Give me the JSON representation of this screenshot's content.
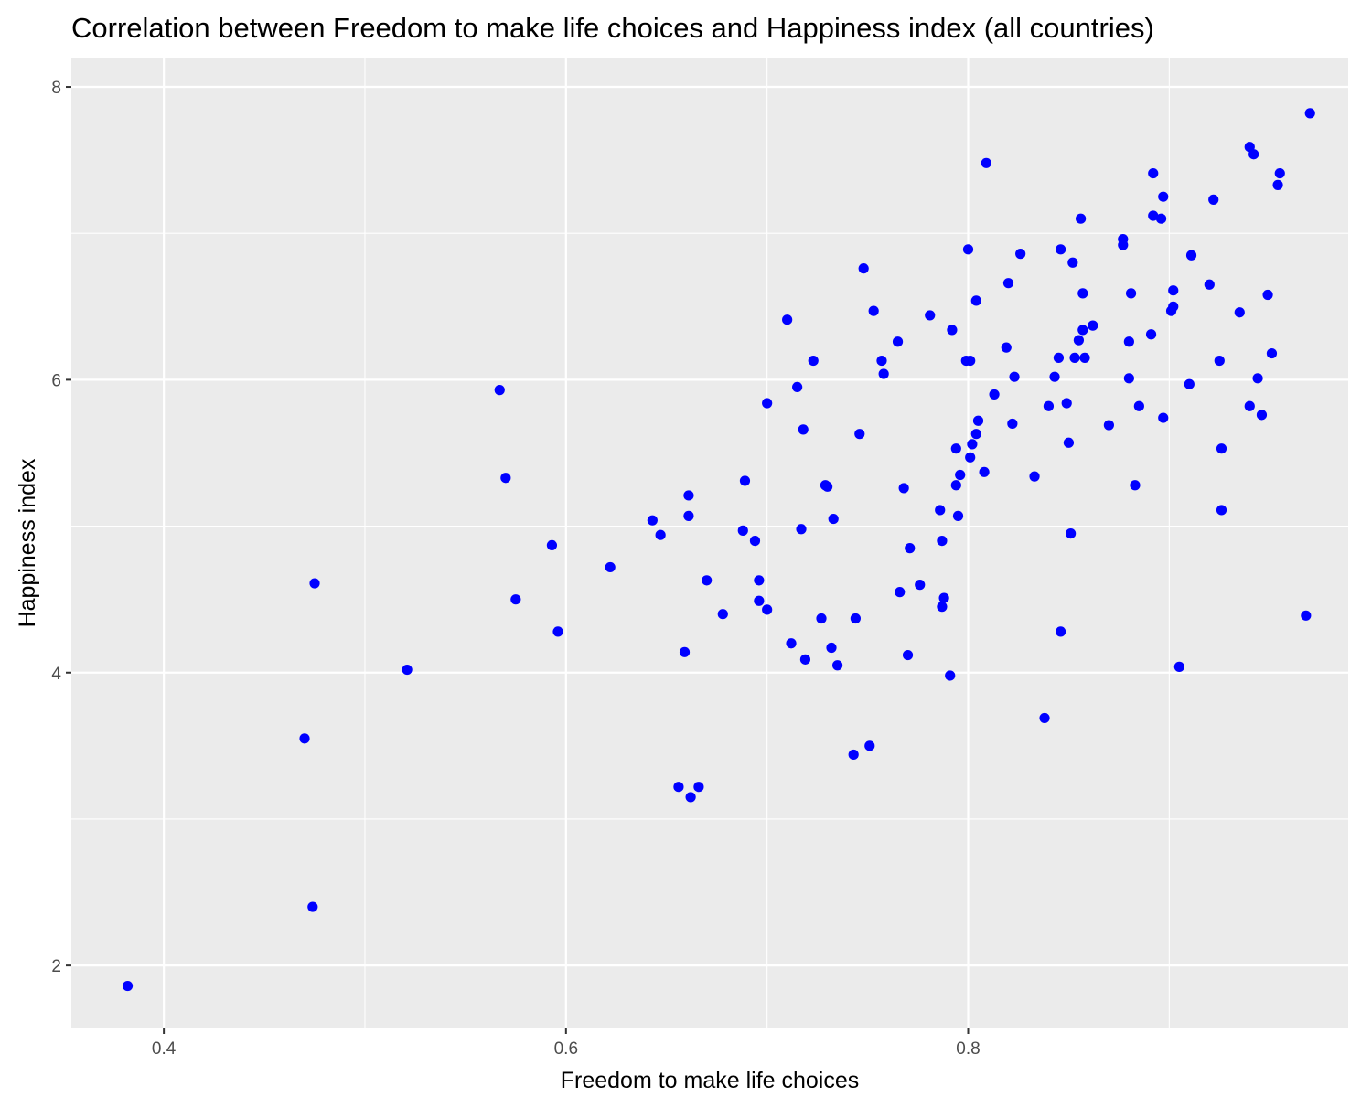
{
  "chart_data": {
    "type": "scatter",
    "title": "Correlation between Freedom to make life choices and Happiness index (all countries)",
    "xlabel": "Freedom to make life choices",
    "ylabel": "Happiness index",
    "xlim": [
      0.354,
      0.989
    ],
    "ylim": [
      1.57,
      8.2
    ],
    "xticks": [
      0.4,
      0.6,
      0.8
    ],
    "xtick_labels": [
      "0.4",
      "0.6",
      "0.8"
    ],
    "yticks": [
      2,
      4,
      6,
      8
    ],
    "ytick_labels": [
      "2",
      "4",
      "6",
      "8"
    ],
    "grid": true,
    "legend": "none",
    "point_color": "#0000ff",
    "panel_color": "#ebebeb",
    "points": [
      [
        0.382,
        1.86
      ],
      [
        0.474,
        2.4
      ],
      [
        0.47,
        3.55
      ],
      [
        0.475,
        4.61
      ],
      [
        0.521,
        4.02
      ],
      [
        0.567,
        5.93
      ],
      [
        0.57,
        5.33
      ],
      [
        0.575,
        4.5
      ],
      [
        0.593,
        4.87
      ],
      [
        0.596,
        4.28
      ],
      [
        0.622,
        4.72
      ],
      [
        0.643,
        5.04
      ],
      [
        0.647,
        4.94
      ],
      [
        0.656,
        3.22
      ],
      [
        0.659,
        4.14
      ],
      [
        0.661,
        5.21
      ],
      [
        0.661,
        5.07
      ],
      [
        0.662,
        3.15
      ],
      [
        0.666,
        3.22
      ],
      [
        0.67,
        4.63
      ],
      [
        0.678,
        4.4
      ],
      [
        0.688,
        4.97
      ],
      [
        0.689,
        5.31
      ],
      [
        0.694,
        4.9
      ],
      [
        0.696,
        4.63
      ],
      [
        0.696,
        4.49
      ],
      [
        0.7,
        4.43
      ],
      [
        0.7,
        5.84
      ],
      [
        0.71,
        6.41
      ],
      [
        0.712,
        4.2
      ],
      [
        0.715,
        5.95
      ],
      [
        0.717,
        4.98
      ],
      [
        0.718,
        5.66
      ],
      [
        0.719,
        4.09
      ],
      [
        0.723,
        6.13
      ],
      [
        0.727,
        4.37
      ],
      [
        0.729,
        5.28
      ],
      [
        0.73,
        5.27
      ],
      [
        0.732,
        4.17
      ],
      [
        0.733,
        5.05
      ],
      [
        0.735,
        4.05
      ],
      [
        0.743,
        3.44
      ],
      [
        0.744,
        4.37
      ],
      [
        0.746,
        5.63
      ],
      [
        0.748,
        6.76
      ],
      [
        0.751,
        3.5
      ],
      [
        0.753,
        6.47
      ],
      [
        0.757,
        6.13
      ],
      [
        0.758,
        6.04
      ],
      [
        0.765,
        6.26
      ],
      [
        0.766,
        4.55
      ],
      [
        0.768,
        5.26
      ],
      [
        0.77,
        4.12
      ],
      [
        0.771,
        4.85
      ],
      [
        0.776,
        4.6
      ],
      [
        0.781,
        6.44
      ],
      [
        0.786,
        5.11
      ],
      [
        0.787,
        4.9
      ],
      [
        0.787,
        4.45
      ],
      [
        0.788,
        4.51
      ],
      [
        0.791,
        3.98
      ],
      [
        0.792,
        6.34
      ],
      [
        0.794,
        5.53
      ],
      [
        0.794,
        5.28
      ],
      [
        0.795,
        5.07
      ],
      [
        0.796,
        5.35
      ],
      [
        0.799,
        6.13
      ],
      [
        0.8,
        6.89
      ],
      [
        0.801,
        6.13
      ],
      [
        0.801,
        5.47
      ],
      [
        0.802,
        5.56
      ],
      [
        0.804,
        5.63
      ],
      [
        0.804,
        6.54
      ],
      [
        0.805,
        5.72
      ],
      [
        0.808,
        5.37
      ],
      [
        0.809,
        7.48
      ],
      [
        0.813,
        5.9
      ],
      [
        0.819,
        6.22
      ],
      [
        0.82,
        6.66
      ],
      [
        0.822,
        5.7
      ],
      [
        0.823,
        6.02
      ],
      [
        0.826,
        6.86
      ],
      [
        0.833,
        5.34
      ],
      [
        0.838,
        3.69
      ],
      [
        0.84,
        5.82
      ],
      [
        0.843,
        6.02
      ],
      [
        0.845,
        6.15
      ],
      [
        0.846,
        4.28
      ],
      [
        0.846,
        6.89
      ],
      [
        0.849,
        5.84
      ],
      [
        0.85,
        5.57
      ],
      [
        0.851,
        4.95
      ],
      [
        0.852,
        6.8
      ],
      [
        0.853,
        6.15
      ],
      [
        0.855,
        6.27
      ],
      [
        0.856,
        7.1
      ],
      [
        0.857,
        6.34
      ],
      [
        0.857,
        6.59
      ],
      [
        0.858,
        6.15
      ],
      [
        0.862,
        6.37
      ],
      [
        0.87,
        5.69
      ],
      [
        0.877,
        6.96
      ],
      [
        0.877,
        6.92
      ],
      [
        0.88,
        6.26
      ],
      [
        0.88,
        6.01
      ],
      [
        0.881,
        6.59
      ],
      [
        0.883,
        5.28
      ],
      [
        0.885,
        5.82
      ],
      [
        0.891,
        6.31
      ],
      [
        0.892,
        7.41
      ],
      [
        0.892,
        7.12
      ],
      [
        0.896,
        7.1
      ],
      [
        0.897,
        7.25
      ],
      [
        0.897,
        5.74
      ],
      [
        0.901,
        6.47
      ],
      [
        0.902,
        6.5
      ],
      [
        0.902,
        6.61
      ],
      [
        0.905,
        4.04
      ],
      [
        0.91,
        5.97
      ],
      [
        0.911,
        6.85
      ],
      [
        0.92,
        6.65
      ],
      [
        0.922,
        7.23
      ],
      [
        0.925,
        6.13
      ],
      [
        0.926,
        5.53
      ],
      [
        0.926,
        5.11
      ],
      [
        0.935,
        6.46
      ],
      [
        0.94,
        7.59
      ],
      [
        0.94,
        5.82
      ],
      [
        0.942,
        7.54
      ],
      [
        0.944,
        6.01
      ],
      [
        0.946,
        5.76
      ],
      [
        0.949,
        6.58
      ],
      [
        0.951,
        6.18
      ],
      [
        0.954,
        7.33
      ],
      [
        0.955,
        7.41
      ],
      [
        0.968,
        4.39
      ],
      [
        0.97,
        7.82
      ]
    ]
  }
}
